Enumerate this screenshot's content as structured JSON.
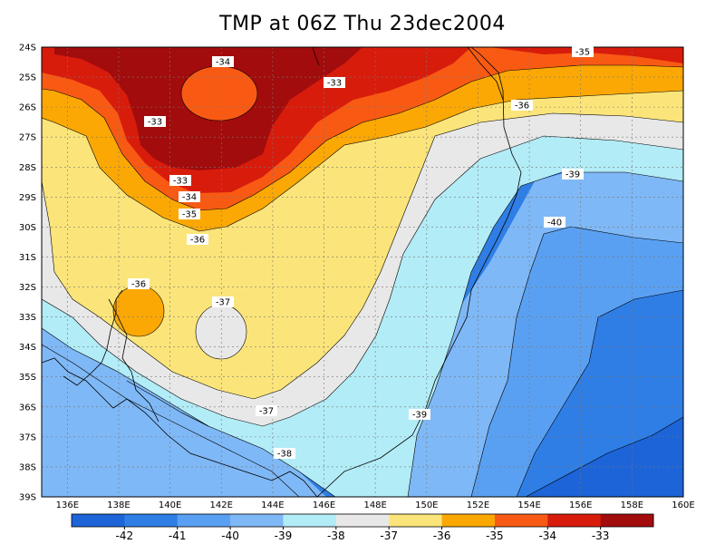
{
  "title": "TMP at 06Z Thu 23dec2004",
  "colors": {
    "c42": "#1c64d8",
    "c41": "#2f7ee6",
    "c40": "#5aa0f2",
    "c39": "#7fb8f6",
    "c38": "#b2ecf6",
    "c37": "#e8e8e8",
    "c36": "#fbe57a",
    "c35": "#fca804",
    "c34": "#f85a14",
    "c33": "#d81c0c",
    "c32": "#a20c0c"
  },
  "axes": {
    "lat_labels": [
      "24S",
      "25S",
      "26S",
      "27S",
      "28S",
      "29S",
      "30S",
      "31S",
      "32S",
      "33S",
      "34S",
      "35S",
      "36S",
      "37S",
      "38S",
      "39S"
    ],
    "lon_labels": [
      "136E",
      "138E",
      "140E",
      "142E",
      "144E",
      "146E",
      "148E",
      "150E",
      "152E",
      "154E",
      "156E",
      "158E",
      "160E"
    ]
  },
  "contour_labels": [
    {
      "text": "-34"
    },
    {
      "text": "-33"
    },
    {
      "text": "-33"
    },
    {
      "text": "-33"
    },
    {
      "text": "-34"
    },
    {
      "text": "-35"
    },
    {
      "text": "-36"
    },
    {
      "text": "-35"
    },
    {
      "text": "-36"
    },
    {
      "text": "-39"
    },
    {
      "text": "-40"
    },
    {
      "text": "-36"
    },
    {
      "text": "-37"
    },
    {
      "text": "-37"
    },
    {
      "text": "-39"
    },
    {
      "text": "-38"
    }
  ],
  "colorbar": {
    "labels": [
      "-42",
      "-41",
      "-40",
      "-39",
      "-38",
      "-37",
      "-36",
      "-35",
      "-34",
      "-33"
    ]
  }
}
